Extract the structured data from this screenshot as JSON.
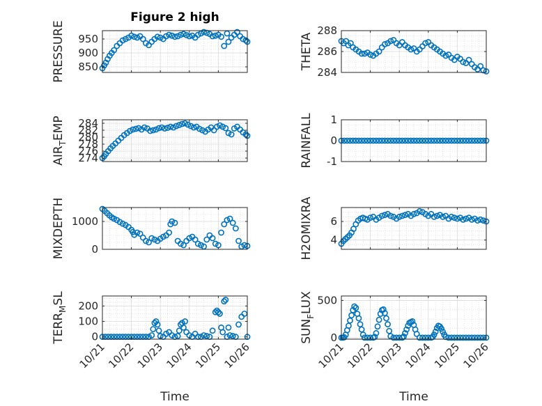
{
  "figure_title": "Figure 2 high",
  "x_axis_label": "Time",
  "x_tick_labels": [
    "10/21",
    "10/22",
    "10/23",
    "10/24",
    "10/25",
    "10/26"
  ],
  "chart_data": [
    {
      "type": "scatter",
      "ylabel": "PRESSURE",
      "xlim": [
        0,
        5
      ],
      "ylim": [
        830,
        980
      ],
      "yticks": [
        850,
        900,
        950
      ],
      "grid": true,
      "marker_color": "#0072BD",
      "x": [
        0.0,
        0.06,
        0.12,
        0.18,
        0.25,
        0.32,
        0.4,
        0.5,
        0.6,
        0.7,
        0.8,
        0.9,
        1.0,
        1.1,
        1.2,
        1.3,
        1.4,
        1.5,
        1.6,
        1.7,
        1.8,
        1.9,
        2.0,
        2.1,
        2.2,
        2.3,
        2.4,
        2.5,
        2.6,
        2.7,
        2.8,
        2.9,
        3.0,
        3.1,
        3.2,
        3.3,
        3.4,
        3.5,
        3.6,
        3.7,
        3.8,
        3.9,
        4.0,
        4.1,
        4.2,
        4.3,
        4.35,
        4.45,
        4.55,
        4.65,
        4.75,
        4.85,
        4.95,
        5.0
      ],
      "y": [
        845,
        855,
        865,
        878,
        890,
        900,
        910,
        925,
        935,
        945,
        950,
        955,
        962,
        958,
        955,
        960,
        950,
        935,
        928,
        940,
        950,
        958,
        955,
        950,
        960,
        965,
        962,
        958,
        960,
        965,
        968,
        964,
        960,
        962,
        955,
        965,
        970,
        975,
        972,
        968,
        960,
        962,
        965,
        958,
        925,
        970,
        940,
        955,
        965,
        975,
        960,
        950,
        945,
        940
      ]
    },
    {
      "type": "scatter",
      "ylabel": "THETA",
      "xlim": [
        0,
        5
      ],
      "ylim": [
        284,
        288
      ],
      "yticks": [
        284,
        286,
        288
      ],
      "grid": true,
      "marker_color": "#0072BD",
      "x": [
        0.0,
        0.08,
        0.16,
        0.24,
        0.32,
        0.4,
        0.5,
        0.6,
        0.7,
        0.8,
        0.9,
        1.0,
        1.1,
        1.2,
        1.3,
        1.4,
        1.5,
        1.6,
        1.7,
        1.8,
        1.9,
        2.0,
        2.1,
        2.2,
        2.3,
        2.4,
        2.5,
        2.6,
        2.7,
        2.8,
        2.9,
        3.0,
        3.1,
        3.2,
        3.3,
        3.4,
        3.5,
        3.6,
        3.7,
        3.8,
        3.9,
        4.0,
        4.1,
        4.2,
        4.3,
        4.4,
        4.5,
        4.6,
        4.7,
        4.8,
        4.9,
        5.0
      ],
      "y": [
        287.0,
        286.8,
        287.0,
        286.6,
        286.8,
        286.4,
        286.2,
        286.0,
        285.8,
        285.8,
        285.9,
        285.7,
        285.6,
        285.8,
        286.0,
        286.4,
        286.7,
        286.8,
        287.0,
        287.1,
        286.8,
        286.6,
        286.9,
        286.6,
        286.4,
        286.2,
        286.3,
        286.0,
        286.2,
        286.5,
        286.8,
        286.9,
        286.6,
        286.4,
        286.2,
        286.0,
        285.8,
        285.6,
        285.7,
        285.4,
        285.2,
        285.5,
        285.3,
        285.0,
        284.9,
        285.2,
        284.8,
        284.5,
        284.3,
        284.6,
        284.2,
        284.1
      ]
    },
    {
      "type": "scatter",
      "ylabel": "AIR_TEMP",
      "xlim": [
        0,
        5
      ],
      "ylim": [
        273,
        285
      ],
      "yticks": [
        274,
        276,
        278,
        280,
        282,
        284
      ],
      "grid": true,
      "marker_color": "#0072BD",
      "x": [
        0.0,
        0.06,
        0.12,
        0.2,
        0.28,
        0.36,
        0.45,
        0.55,
        0.65,
        0.75,
        0.85,
        0.95,
        1.05,
        1.15,
        1.25,
        1.35,
        1.45,
        1.55,
        1.65,
        1.75,
        1.85,
        1.95,
        2.05,
        2.15,
        2.25,
        2.35,
        2.45,
        2.55,
        2.65,
        2.75,
        2.85,
        2.95,
        3.05,
        3.15,
        3.25,
        3.35,
        3.45,
        3.55,
        3.65,
        3.75,
        3.85,
        3.95,
        4.05,
        4.15,
        4.25,
        4.35,
        4.45,
        4.55,
        4.65,
        4.75,
        4.85,
        4.95,
        5.0
      ],
      "y": [
        274.0,
        274.5,
        275.2,
        276.0,
        276.8,
        277.5,
        278.2,
        279.0,
        279.8,
        280.6,
        281.2,
        281.8,
        282.2,
        282.4,
        282.6,
        282.2,
        282.8,
        282.5,
        281.8,
        282.0,
        282.2,
        282.6,
        282.8,
        282.5,
        282.7,
        283.0,
        282.8,
        283.2,
        283.5,
        283.8,
        284.0,
        283.6,
        283.2,
        282.8,
        283.0,
        282.4,
        282.0,
        281.6,
        282.2,
        282.8,
        282.0,
        283.0,
        283.4,
        283.0,
        282.6,
        281.2,
        280.8,
        282.5,
        283.0,
        282.2,
        281.4,
        280.8,
        280.4
      ]
    },
    {
      "type": "scatter",
      "ylabel": "RAINFALL",
      "xlim": [
        0,
        5
      ],
      "ylim": [
        -1,
        1
      ],
      "yticks": [
        -1,
        0,
        1
      ],
      "grid": true,
      "marker_color": "#0072BD",
      "x": [
        0.0,
        0.1,
        0.2,
        0.3,
        0.4,
        0.5,
        0.6,
        0.7,
        0.8,
        0.9,
        1.0,
        1.1,
        1.2,
        1.3,
        1.4,
        1.5,
        1.6,
        1.7,
        1.8,
        1.9,
        2.0,
        2.1,
        2.2,
        2.3,
        2.4,
        2.5,
        2.6,
        2.7,
        2.8,
        2.9,
        3.0,
        3.1,
        3.2,
        3.3,
        3.4,
        3.5,
        3.6,
        3.7,
        3.8,
        3.9,
        4.0,
        4.1,
        4.2,
        4.3,
        4.4,
        4.5,
        4.6,
        4.7,
        4.8,
        4.9,
        5.0
      ],
      "y": [
        0,
        0,
        0,
        0,
        0,
        0,
        0,
        0,
        0,
        0,
        0,
        0,
        0,
        0,
        0,
        0,
        0,
        0,
        0,
        0,
        0,
        0,
        0,
        0,
        0,
        0,
        0,
        0,
        0,
        0,
        0,
        0,
        0,
        0,
        0,
        0,
        0,
        0,
        0,
        0,
        0,
        0,
        0,
        0,
        0,
        0,
        0,
        0,
        0,
        0,
        0
      ]
    },
    {
      "type": "scatter",
      "ylabel": "MIXDEPTH",
      "xlim": [
        0,
        5
      ],
      "ylim": [
        0,
        1500
      ],
      "yticks": [
        0,
        1000
      ],
      "grid": true,
      "marker_color": "#0072BD",
      "x": [
        0.0,
        0.08,
        0.16,
        0.24,
        0.32,
        0.4,
        0.5,
        0.6,
        0.7,
        0.8,
        0.9,
        1.0,
        1.05,
        1.1,
        1.2,
        1.3,
        1.4,
        1.5,
        1.6,
        1.7,
        1.8,
        1.9,
        2.0,
        2.1,
        2.2,
        2.3,
        2.35,
        2.4,
        2.5,
        2.6,
        2.7,
        2.8,
        2.9,
        3.0,
        3.1,
        3.2,
        3.3,
        3.4,
        3.5,
        3.6,
        3.7,
        3.8,
        3.9,
        4.0,
        4.1,
        4.2,
        4.3,
        4.4,
        4.5,
        4.6,
        4.7,
        4.8,
        4.9,
        5.0
      ],
      "y": [
        1450,
        1380,
        1300,
        1220,
        1150,
        1100,
        1050,
        980,
        920,
        870,
        800,
        700,
        620,
        520,
        600,
        560,
        420,
        300,
        250,
        400,
        350,
        300,
        380,
        450,
        500,
        600,
        900,
        1000,
        950,
        300,
        200,
        150,
        300,
        400,
        450,
        350,
        200,
        150,
        100,
        350,
        500,
        400,
        200,
        150,
        600,
        900,
        1050,
        1100,
        950,
        750,
        300,
        100,
        150,
        120
      ]
    },
    {
      "type": "scatter",
      "ylabel": "H2OMIXRA",
      "xlim": [
        0,
        5
      ],
      "ylim": [
        3,
        7.5
      ],
      "yticks": [
        4,
        6
      ],
      "grid": true,
      "marker_color": "#0072BD",
      "x": [
        0.0,
        0.07,
        0.14,
        0.21,
        0.28,
        0.35,
        0.42,
        0.5,
        0.58,
        0.66,
        0.74,
        0.82,
        0.9,
        1.0,
        1.1,
        1.2,
        1.3,
        1.4,
        1.5,
        1.6,
        1.7,
        1.8,
        1.9,
        2.0,
        2.1,
        2.2,
        2.3,
        2.4,
        2.5,
        2.6,
        2.7,
        2.8,
        2.9,
        3.0,
        3.1,
        3.2,
        3.3,
        3.4,
        3.5,
        3.6,
        3.7,
        3.8,
        3.9,
        4.0,
        4.1,
        4.2,
        4.3,
        4.4,
        4.5,
        4.6,
        4.7,
        4.8,
        4.9,
        5.0
      ],
      "y": [
        3.6,
        3.9,
        4.1,
        4.3,
        4.5,
        4.8,
        5.2,
        5.7,
        6.1,
        6.3,
        6.4,
        6.3,
        6.2,
        6.4,
        6.5,
        6.2,
        6.4,
        6.6,
        6.7,
        6.8,
        6.6,
        6.5,
        6.3,
        6.5,
        6.6,
        6.7,
        6.8,
        6.6,
        6.8,
        6.9,
        7.1,
        7.0,
        6.8,
        6.6,
        6.8,
        6.5,
        6.6,
        6.7,
        6.5,
        6.6,
        6.3,
        6.5,
        6.4,
        6.3,
        6.4,
        6.2,
        6.3,
        6.4,
        6.2,
        6.3,
        6.1,
        6.2,
        6.1,
        6.0
      ]
    },
    {
      "type": "scatter",
      "ylabel": "TERR_MSL",
      "xlim": [
        0,
        5
      ],
      "ylim": [
        -15,
        265
      ],
      "yticks": [
        0,
        100,
        200
      ],
      "grid": true,
      "marker_color": "#0072BD",
      "x": [
        0.0,
        0.1,
        0.2,
        0.3,
        0.4,
        0.5,
        0.6,
        0.7,
        0.8,
        0.9,
        1.0,
        1.1,
        1.2,
        1.3,
        1.4,
        1.5,
        1.6,
        1.7,
        1.75,
        1.8,
        1.85,
        1.9,
        1.95,
        2.0,
        2.1,
        2.2,
        2.3,
        2.4,
        2.5,
        2.6,
        2.65,
        2.7,
        2.75,
        2.8,
        2.85,
        2.9,
        3.0,
        3.1,
        3.2,
        3.3,
        3.4,
        3.5,
        3.6,
        3.7,
        3.8,
        3.9,
        3.95,
        4.0,
        4.05,
        4.1,
        4.15,
        4.2,
        4.25,
        4.3,
        4.35,
        4.4,
        4.5,
        4.6,
        4.7,
        4.8,
        4.9,
        5.0
      ],
      "y": [
        0,
        0,
        0,
        0,
        0,
        0,
        0,
        0,
        0,
        0,
        0,
        0,
        0,
        0,
        0,
        0,
        0,
        10,
        50,
        90,
        100,
        80,
        40,
        5,
        0,
        20,
        30,
        10,
        0,
        5,
        40,
        80,
        90,
        60,
        100,
        30,
        10,
        0,
        20,
        0,
        0,
        10,
        5,
        0,
        40,
        160,
        170,
        160,
        150,
        60,
        30,
        230,
        240,
        0,
        60,
        10,
        5,
        0,
        80,
        130,
        150,
        0
      ]
    },
    {
      "type": "scatter",
      "ylabel": "SUN_FLUX",
      "xlim": [
        0,
        5
      ],
      "ylim": [
        -20,
        560
      ],
      "yticks": [
        0,
        500
      ],
      "grid": true,
      "marker_color": "#0072BD",
      "x": [
        0.0,
        0.05,
        0.1,
        0.15,
        0.2,
        0.25,
        0.3,
        0.35,
        0.4,
        0.45,
        0.5,
        0.55,
        0.6,
        0.65,
        0.7,
        0.75,
        0.8,
        0.9,
        1.0,
        1.1,
        1.15,
        1.2,
        1.25,
        1.3,
        1.35,
        1.4,
        1.45,
        1.5,
        1.55,
        1.6,
        1.65,
        1.7,
        1.8,
        1.9,
        2.0,
        2.1,
        2.15,
        2.2,
        2.25,
        2.3,
        2.35,
        2.4,
        2.45,
        2.5,
        2.55,
        2.6,
        2.7,
        2.8,
        2.9,
        3.0,
        3.1,
        3.15,
        3.2,
        3.25,
        3.3,
        3.35,
        3.4,
        3.45,
        3.5,
        3.55,
        3.6,
        3.7,
        3.8,
        3.9,
        4.0,
        4.1,
        4.2,
        4.3,
        4.4,
        4.5,
        4.6,
        4.7,
        4.8,
        4.9,
        5.0
      ],
      "y": [
        0,
        0,
        5,
        40,
        100,
        160,
        230,
        300,
        370,
        420,
        400,
        320,
        260,
        180,
        110,
        40,
        0,
        0,
        0,
        0,
        10,
        60,
        150,
        240,
        320,
        370,
        380,
        330,
        260,
        180,
        90,
        20,
        0,
        0,
        0,
        0,
        15,
        60,
        110,
        160,
        200,
        210,
        220,
        170,
        110,
        50,
        0,
        0,
        0,
        0,
        0,
        10,
        40,
        80,
        130,
        160,
        150,
        120,
        80,
        40,
        10,
        0,
        0,
        0,
        0,
        0,
        0,
        0,
        0,
        0,
        0,
        0,
        0,
        0,
        0
      ]
    }
  ]
}
